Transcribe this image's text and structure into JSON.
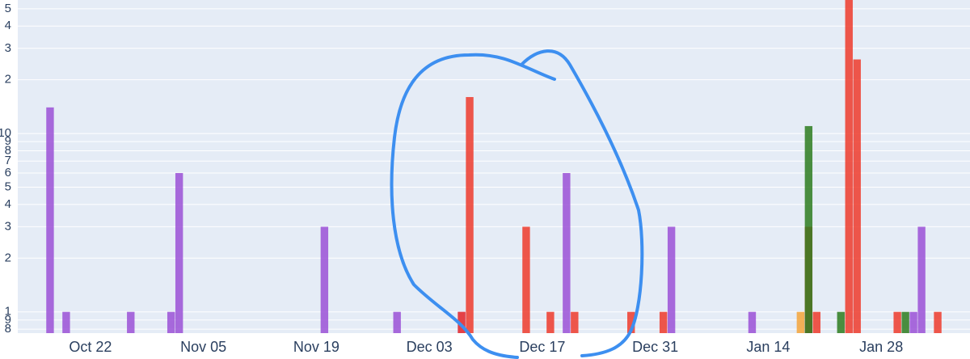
{
  "chart_data": {
    "type": "bar",
    "log_y": true,
    "grid": true,
    "xlim": [
      "Oct 13",
      "Feb 08"
    ],
    "xticks": [
      "Oct 22",
      "Nov 05",
      "Nov 19",
      "Dec 03",
      "Dec 17",
      "Dec 31",
      "Jan 14",
      "Jan 28"
    ],
    "ylim": [
      0.76,
      56
    ],
    "yticks": [
      {
        "value": 0.8,
        "label": "8"
      },
      {
        "value": 0.9,
        "label": "9"
      },
      1,
      2,
      3,
      4,
      5,
      6,
      7,
      8,
      9,
      10,
      {
        "value": 20,
        "label": "2"
      },
      {
        "value": 30,
        "label": "3"
      },
      {
        "value": 40,
        "label": "4"
      },
      {
        "value": 50,
        "label": "5"
      }
    ],
    "series": [
      {
        "color": "#9b51d6",
        "x": [
          "Oct 17",
          "Oct 19",
          "Oct 27",
          "Nov 01",
          "Nov 02",
          "Nov 20",
          "Nov 29",
          "Dec 07",
          "Dec 20",
          "Jan 02",
          "Jan 12",
          "Feb 01",
          "Feb 02"
        ],
        "values": [
          14,
          1,
          1,
          1,
          6,
          3,
          1,
          1,
          6,
          3,
          1,
          1,
          3
        ]
      },
      {
        "color": "#ef3b2c",
        "x": [
          "Dec 07",
          "Dec 08",
          "Dec 15",
          "Dec 18",
          "Dec 21",
          "Dec 28",
          "Jan 01",
          "Jan 19",
          "Jan 20",
          "Jan 24",
          "Jan 25",
          "Jan 30",
          "Feb 04"
        ],
        "values": [
          1,
          16,
          3,
          1,
          1,
          1,
          1,
          3,
          1,
          58,
          26,
          1,
          1
        ]
      },
      {
        "color": "#2e7d1f",
        "x": [
          "Jan 19",
          "Jan 23",
          "Jan 31"
        ],
        "values": [
          11,
          1,
          1
        ]
      },
      {
        "color": "#f4a53a",
        "x": [
          "Jan 18"
        ],
        "values": [
          1
        ]
      }
    ]
  }
}
